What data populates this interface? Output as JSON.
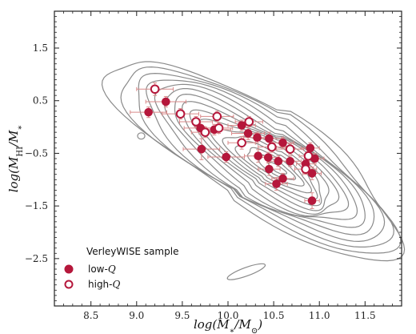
{
  "chart_data": {
    "type": "scatter",
    "title": "",
    "xlabel_parts": [
      "log(M",
      "∗",
      "/M",
      "⊙",
      ")"
    ],
    "ylabel_parts": [
      "log(M",
      "HI",
      "/M",
      "∗",
      ")"
    ],
    "xlim": [
      8.1,
      11.9
    ],
    "ylim": [
      -3.4,
      2.2
    ],
    "xticks": [
      8.5,
      9.0,
      9.5,
      10.0,
      10.5,
      11.0,
      11.5
    ],
    "xtick_labels": [
      "8.5",
      "9.0",
      "9.5",
      "10.0",
      "10.5",
      "11.0",
      "11.5"
    ],
    "yticks": [
      1.5,
      0.5,
      -0.5,
      -1.5,
      -2.5
    ],
    "ytick_labels": [
      "1.5",
      "0.5",
      "−0.5",
      "−1.5",
      "−2.5"
    ],
    "grid": false,
    "legend": {
      "title": "VerleyWISE sample",
      "placement": "bottom-left",
      "entries": [
        {
          "label_parts": [
            "low-",
            "Q"
          ],
          "marker": "filled"
        },
        {
          "label_parts": [
            "high-",
            "Q"
          ],
          "marker": "open"
        }
      ]
    },
    "contours": {
      "color": "#8a8a8a",
      "center": [
        10.55,
        -0.8
      ],
      "angle_deg": -32,
      "semi_axes_outer": [
        1.85,
        0.95
      ],
      "levels": 16,
      "offset_outer": [
        -0.25,
        0.25
      ]
    },
    "series": [
      {
        "marker": "filled",
        "color": "#b5173b",
        "points": [
          {
            "x": 9.13,
            "y": 0.28,
            "xerr": 0.2,
            "yerr": 0.1
          },
          {
            "x": 9.32,
            "y": 0.48,
            "xerr": 0.22,
            "yerr": 0.1
          },
          {
            "x": 9.7,
            "y": -0.02,
            "xerr": 0.18,
            "yerr": 0.12
          },
          {
            "x": 9.71,
            "y": -0.42,
            "xerr": 0.2,
            "yerr": 0.2
          },
          {
            "x": 9.85,
            "y": -0.05,
            "xerr": 0.18,
            "yerr": 0.1
          },
          {
            "x": 9.98,
            "y": -0.57,
            "xerr": 0.2,
            "yerr": 0.1
          },
          {
            "x": 10.15,
            "y": 0.03,
            "xerr": 0.15,
            "yerr": 0.1
          },
          {
            "x": 10.22,
            "y": -0.12,
            "xerr": 0.18,
            "yerr": 0.12
          },
          {
            "x": 10.32,
            "y": -0.2,
            "xerr": 0.15,
            "yerr": 0.1
          },
          {
            "x": 10.33,
            "y": -0.55,
            "xerr": 0.15,
            "yerr": 0.12
          },
          {
            "x": 10.45,
            "y": -0.22,
            "xerr": 0.15,
            "yerr": 0.12
          },
          {
            "x": 10.44,
            "y": -0.58,
            "xerr": 0.12,
            "yerr": 0.1
          },
          {
            "x": 10.45,
            "y": -0.8,
            "xerr": 0.12,
            "yerr": 0.12
          },
          {
            "x": 10.55,
            "y": -0.65,
            "xerr": 0.12,
            "yerr": 0.1
          },
          {
            "x": 10.53,
            "y": -1.08,
            "xerr": 0.12,
            "yerr": 0.12
          },
          {
            "x": 10.6,
            "y": -0.3,
            "xerr": 0.12,
            "yerr": 0.1
          },
          {
            "x": 10.6,
            "y": -0.98,
            "xerr": 0.12,
            "yerr": 0.1
          },
          {
            "x": 10.68,
            "y": -0.65,
            "xerr": 0.12,
            "yerr": 0.1
          },
          {
            "x": 10.85,
            "y": -0.7,
            "xerr": 0.1,
            "yerr": 0.1
          },
          {
            "x": 10.9,
            "y": -0.4,
            "xerr": 0.1,
            "yerr": 0.1
          },
          {
            "x": 10.92,
            "y": -0.88,
            "xerr": 0.1,
            "yerr": 0.12
          },
          {
            "x": 10.95,
            "y": -0.6,
            "xerr": 0.1,
            "yerr": 0.1
          },
          {
            "x": 10.92,
            "y": -1.4,
            "xerr": 0.08,
            "yerr": 0.15
          }
        ]
      },
      {
        "marker": "open",
        "color": "#b5173b",
        "points": [
          {
            "x": 9.2,
            "y": 0.72,
            "xerr": 0.2,
            "yerr": 0.12
          },
          {
            "x": 9.48,
            "y": 0.25,
            "xerr": 0.2,
            "yerr": 0.1
          },
          {
            "x": 9.65,
            "y": 0.1,
            "xerr": 0.18,
            "yerr": 0.1
          },
          {
            "x": 9.75,
            "y": -0.1,
            "xerr": 0.15,
            "yerr": 0.1
          },
          {
            "x": 9.88,
            "y": 0.2,
            "xerr": 0.18,
            "yerr": 0.1
          },
          {
            "x": 9.9,
            "y": -0.02,
            "xerr": 0.15,
            "yerr": 0.1
          },
          {
            "x": 10.15,
            "y": -0.3,
            "xerr": 0.15,
            "yerr": 0.12
          },
          {
            "x": 10.23,
            "y": 0.1,
            "xerr": 0.15,
            "yerr": 0.1
          },
          {
            "x": 10.48,
            "y": -0.38,
            "xerr": 0.15,
            "yerr": 0.1
          },
          {
            "x": 10.68,
            "y": -0.42,
            "xerr": 0.15,
            "yerr": 0.1
          },
          {
            "x": 10.85,
            "y": -0.8,
            "xerr": 0.12,
            "yerr": 0.1
          },
          {
            "x": 10.88,
            "y": -0.55,
            "xerr": 0.1,
            "yerr": 0.1
          }
        ]
      }
    ]
  }
}
